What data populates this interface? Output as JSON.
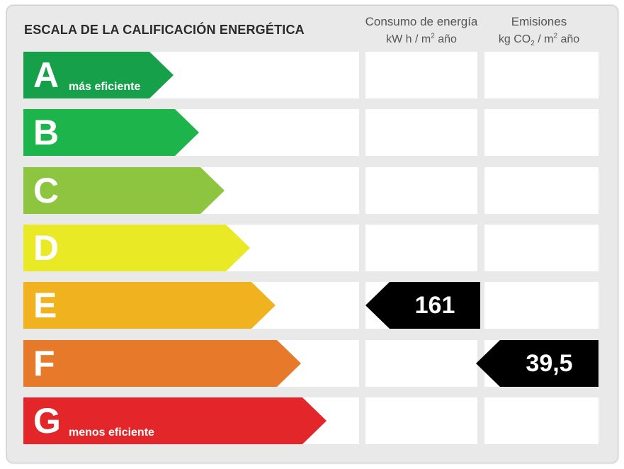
{
  "title": "ESCALA DE LA CALIFICACIÓN ENERGÉTICA",
  "columns": {
    "consumption": {
      "line1": "Consumo de energía",
      "unit_pre": "kW h  / m",
      "unit_sup": "2",
      "unit_post": " año"
    },
    "emissions": {
      "line1": "Emisiones",
      "unit_pre": "kg CO",
      "unit_sub": "2",
      "unit_mid": "  / m",
      "unit_sup": "2",
      "unit_post": " año"
    }
  },
  "bands": [
    {
      "letter": "A",
      "label": "más eficiente",
      "color": "#16a04a"
    },
    {
      "letter": "B",
      "label": "",
      "color": "#1db54b"
    },
    {
      "letter": "C",
      "label": "",
      "color": "#8dc540"
    },
    {
      "letter": "D",
      "label": "",
      "color": "#e9ea25"
    },
    {
      "letter": "E",
      "label": "",
      "color": "#f0b21f"
    },
    {
      "letter": "F",
      "label": "",
      "color": "#e6792a"
    },
    {
      "letter": "G",
      "label": "menos eficiente",
      "color": "#e3262a"
    }
  ],
  "ratings": {
    "consumption": {
      "value": "161",
      "band": "E"
    },
    "emissions": {
      "value": "39,5",
      "band": "F"
    }
  }
}
